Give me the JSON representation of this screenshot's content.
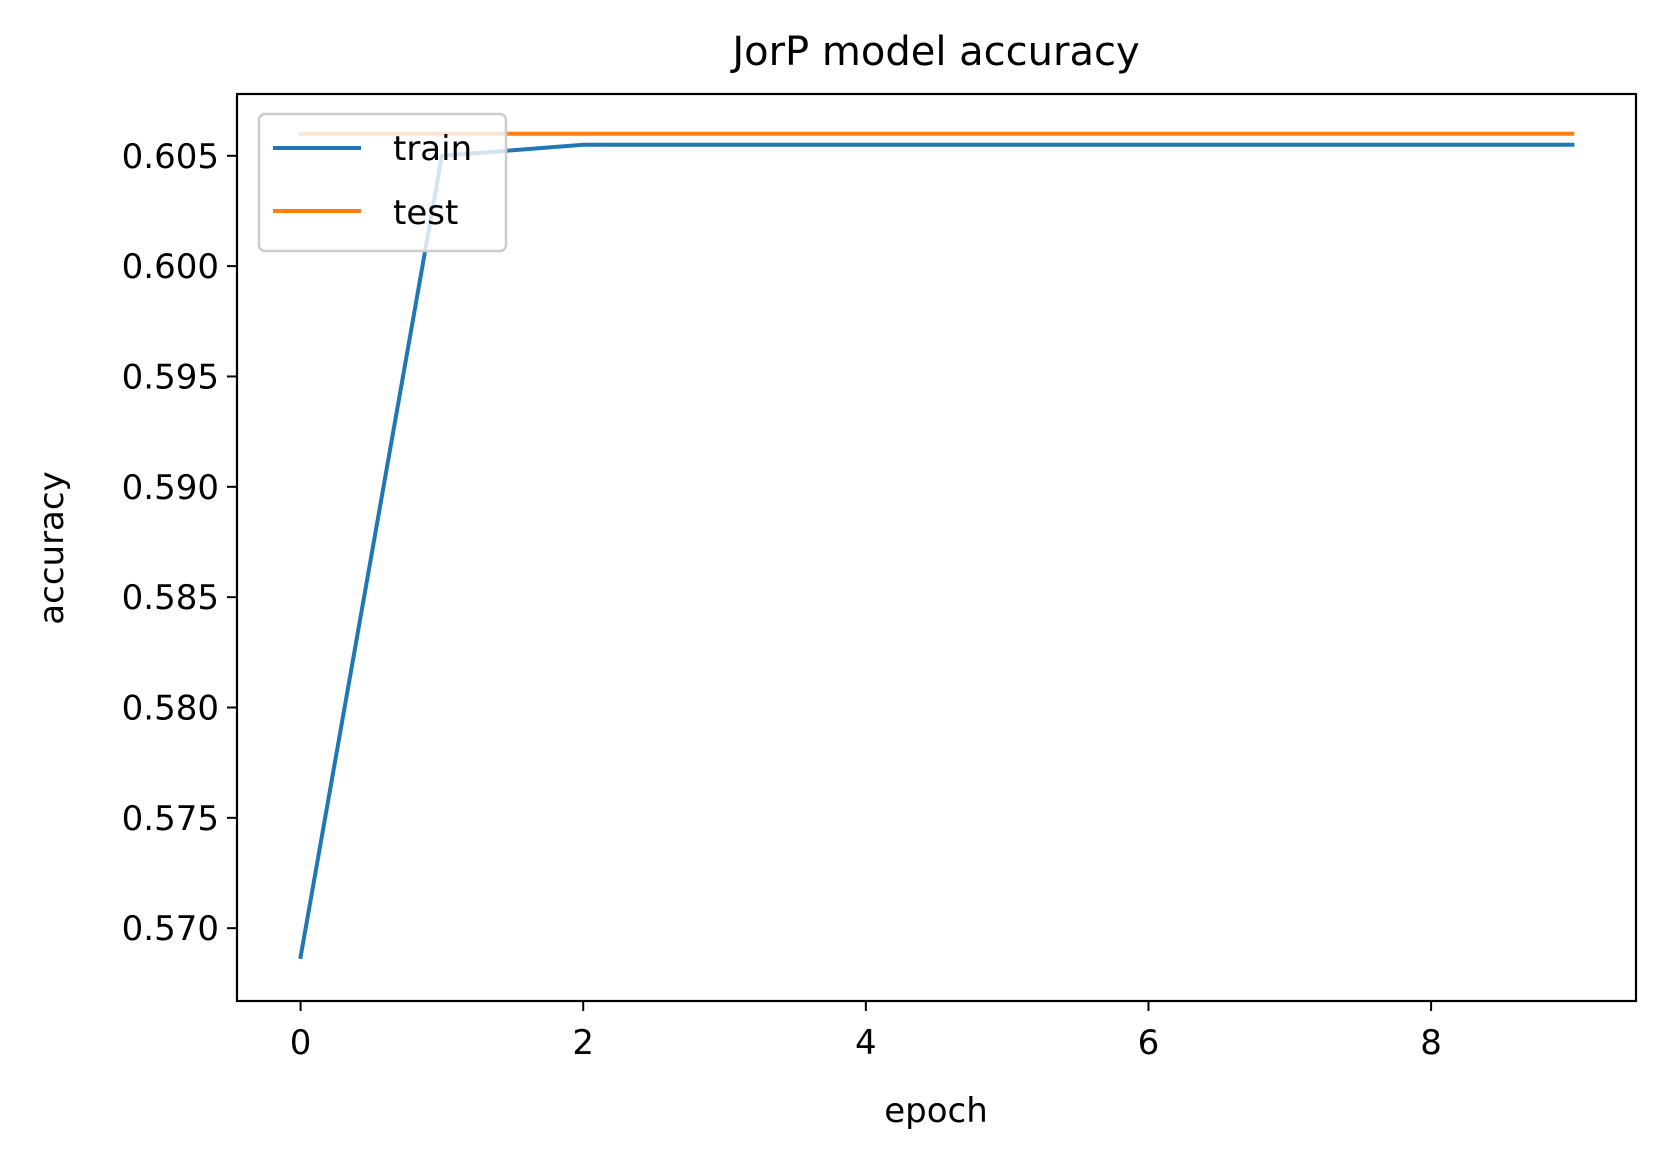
{
  "chart_data": {
    "type": "line",
    "title": "JorP model accuracy",
    "xlabel": "epoch",
    "ylabel": "accuracy",
    "x": [
      0,
      1,
      2,
      3,
      4,
      5,
      6,
      7,
      8,
      9
    ],
    "xlim": [
      -0.45,
      9.45
    ],
    "ylim": [
      0.5667,
      0.6078
    ],
    "xticks": [
      0,
      2,
      4,
      6,
      8
    ],
    "xtick_labels": [
      "0",
      "2",
      "4",
      "6",
      "8"
    ],
    "yticks": [
      0.57,
      0.575,
      0.58,
      0.585,
      0.59,
      0.595,
      0.6,
      0.605
    ],
    "ytick_labels": [
      "0.570",
      "0.575",
      "0.580",
      "0.585",
      "0.590",
      "0.595",
      "0.600",
      "0.605"
    ],
    "grid": false,
    "legend_position": "top-left",
    "series": [
      {
        "name": "train",
        "color": "#1f77b4",
        "values": [
          0.5687,
          0.605,
          0.6055,
          0.6055,
          0.6055,
          0.6055,
          0.6055,
          0.6055,
          0.6055,
          0.6055
        ]
      },
      {
        "name": "test",
        "color": "#ff7f0e",
        "values": [
          0.606,
          0.606,
          0.606,
          0.606,
          0.606,
          0.606,
          0.606,
          0.606,
          0.606,
          0.606
        ]
      }
    ]
  }
}
